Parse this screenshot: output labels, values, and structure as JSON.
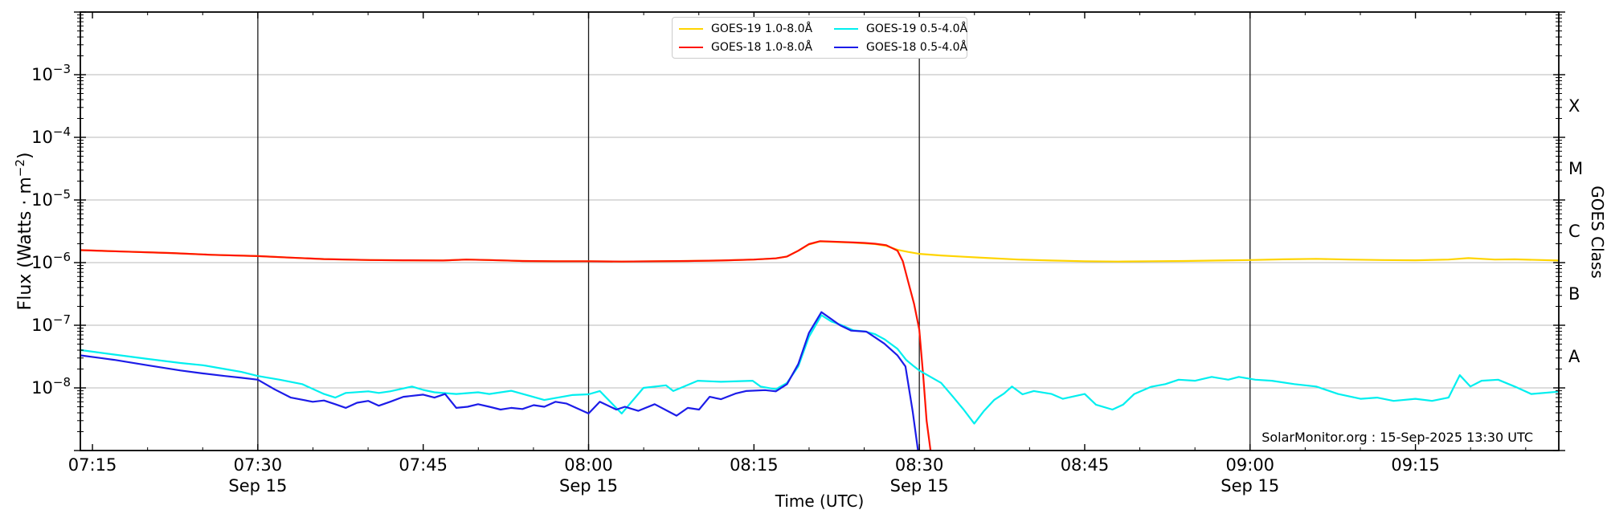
{
  "annotation": {
    "text": "SolarMonitor.org : 15-Sep-2025 13:30 UTC"
  },
  "axes": {
    "xlabel": "Time (UTC)",
    "ylabel_pre": "Flux (Watts · m",
    "ylabel_sup": "−2",
    "ylabel_post": ")",
    "ylabel_right": "GOES Class"
  },
  "legend": {
    "entries": [
      {
        "label": "GOES-19 1.0-8.0Å",
        "color": "#FFD400"
      },
      {
        "label": "GOES-19 0.5-4.0Å",
        "color": "#00EFEF"
      },
      {
        "label": "GOES-18 1.0-8.0Å",
        "color": "#FF1400"
      },
      {
        "label": "GOES-18 0.5-4.0Å",
        "color": "#1C1CE8"
      }
    ]
  },
  "chart_data": {
    "type": "line",
    "title": "",
    "xlabel": "Time (UTC)",
    "ylabel": "Flux (Watts · m⁻²)",
    "ylabel_right": "GOES Class",
    "x_axis": {
      "unit": "decimal hours UTC on 15-Sep-2025",
      "range_hours": [
        7.2317,
        9.4667
      ],
      "major_ticks": [
        {
          "t": 7.25,
          "label": "07:15"
        },
        {
          "t": 7.5,
          "label": "07:30",
          "date": "Sep 15"
        },
        {
          "t": 7.75,
          "label": "07:45"
        },
        {
          "t": 8.0,
          "label": "08:00",
          "date": "Sep 15"
        },
        {
          "t": 8.25,
          "label": "08:15"
        },
        {
          "t": 8.5,
          "label": "08:30",
          "date": "Sep 15"
        },
        {
          "t": 8.75,
          "label": "08:45"
        },
        {
          "t": 9.0,
          "label": "09:00",
          "date": "Sep 15"
        },
        {
          "t": 9.25,
          "label": "09:15"
        }
      ],
      "minor_tick_minutes": 5,
      "vlines_hours": [
        7.5,
        8.0,
        8.5,
        9.0
      ]
    },
    "y_axis": {
      "scale": "log",
      "range": [
        1e-09,
        0.01
      ],
      "labeled_decades": [
        -3,
        -4,
        -5,
        -6,
        -7,
        -8
      ],
      "grid": true
    },
    "y_axis_right": {
      "classes": [
        {
          "label": "X",
          "log_center": -3.5
        },
        {
          "label": "M",
          "log_center": -4.5
        },
        {
          "label": "C",
          "log_center": -5.5
        },
        {
          "label": "B",
          "log_center": -6.5
        },
        {
          "label": "A",
          "log_center": -7.5
        }
      ]
    },
    "legend_position": "top-center",
    "series": [
      {
        "name": "GOES-19 1.0-8.0Å",
        "satellite": "GOES-19",
        "band": "1.0-8.0Å",
        "color": "#FFD400",
        "points": [
          [
            7.233,
            1.58e-06
          ],
          [
            7.3,
            1.5e-06
          ],
          [
            7.37,
            1.42e-06
          ],
          [
            7.43,
            1.33e-06
          ],
          [
            7.5,
            1.27e-06
          ],
          [
            7.55,
            1.2e-06
          ],
          [
            7.6,
            1.14e-06
          ],
          [
            7.67,
            1.1e-06
          ],
          [
            7.72,
            1.09e-06
          ],
          [
            7.78,
            1.08e-06
          ],
          [
            7.815,
            1.12e-06
          ],
          [
            7.85,
            1.1e-06
          ],
          [
            7.9,
            1.06e-06
          ],
          [
            7.95,
            1.05e-06
          ],
          [
            8.0,
            1.05e-06
          ],
          [
            8.05,
            1.04e-06
          ],
          [
            8.1,
            1.05e-06
          ],
          [
            8.15,
            1.06e-06
          ],
          [
            8.2,
            1.08e-06
          ],
          [
            8.25,
            1.12e-06
          ],
          [
            8.283,
            1.17e-06
          ],
          [
            8.3,
            1.25e-06
          ],
          [
            8.317,
            1.55e-06
          ],
          [
            8.333,
            1.95e-06
          ],
          [
            8.35,
            2.18e-06
          ],
          [
            8.367,
            2.15e-06
          ],
          [
            8.4,
            2.08e-06
          ],
          [
            8.433,
            1.98e-06
          ],
          [
            8.45,
            1.85e-06
          ],
          [
            8.467,
            1.6e-06
          ],
          [
            8.483,
            1.48e-06
          ],
          [
            8.5,
            1.38e-06
          ],
          [
            8.533,
            1.3e-06
          ],
          [
            8.567,
            1.24e-06
          ],
          [
            8.6,
            1.19e-06
          ],
          [
            8.65,
            1.12e-06
          ],
          [
            8.7,
            1.08e-06
          ],
          [
            8.75,
            1.05e-06
          ],
          [
            8.8,
            1.04e-06
          ],
          [
            8.85,
            1.05e-06
          ],
          [
            8.9,
            1.06e-06
          ],
          [
            8.95,
            1.08e-06
          ],
          [
            9.0,
            1.1e-06
          ],
          [
            9.05,
            1.13e-06
          ],
          [
            9.1,
            1.15e-06
          ],
          [
            9.15,
            1.12e-06
          ],
          [
            9.2,
            1.1e-06
          ],
          [
            9.25,
            1.09e-06
          ],
          [
            9.3,
            1.12e-06
          ],
          [
            9.33,
            1.18e-06
          ],
          [
            9.37,
            1.12e-06
          ],
          [
            9.4,
            1.13e-06
          ],
          [
            9.4667,
            1.08e-06
          ]
        ]
      },
      {
        "name": "GOES-18 1.0-8.0Å",
        "satellite": "GOES-18",
        "band": "1.0-8.0Å",
        "color": "#FF1400",
        "points": [
          [
            7.233,
            1.58e-06
          ],
          [
            7.3,
            1.5e-06
          ],
          [
            7.37,
            1.42e-06
          ],
          [
            7.43,
            1.33e-06
          ],
          [
            7.5,
            1.27e-06
          ],
          [
            7.55,
            1.2e-06
          ],
          [
            7.6,
            1.14e-06
          ],
          [
            7.67,
            1.1e-06
          ],
          [
            7.72,
            1.09e-06
          ],
          [
            7.78,
            1.08e-06
          ],
          [
            7.815,
            1.12e-06
          ],
          [
            7.85,
            1.1e-06
          ],
          [
            7.9,
            1.06e-06
          ],
          [
            7.95,
            1.05e-06
          ],
          [
            8.0,
            1.05e-06
          ],
          [
            8.05,
            1.04e-06
          ],
          [
            8.1,
            1.05e-06
          ],
          [
            8.15,
            1.06e-06
          ],
          [
            8.2,
            1.08e-06
          ],
          [
            8.25,
            1.12e-06
          ],
          [
            8.283,
            1.17e-06
          ],
          [
            8.3,
            1.25e-06
          ],
          [
            8.317,
            1.55e-06
          ],
          [
            8.333,
            1.97e-06
          ],
          [
            8.35,
            2.2e-06
          ],
          [
            8.367,
            2.17e-06
          ],
          [
            8.4,
            2.1e-06
          ],
          [
            8.417,
            2.06e-06
          ],
          [
            8.433,
            2e-06
          ],
          [
            8.45,
            1.9e-06
          ],
          [
            8.467,
            1.55e-06
          ],
          [
            8.475,
            1.05e-06
          ],
          [
            8.483,
            5e-07
          ],
          [
            8.492,
            2.2e-07
          ],
          [
            8.5,
            8.5e-08
          ],
          [
            8.506,
            1.5e-08
          ],
          [
            8.511,
            3e-09
          ],
          [
            8.517,
            1e-09
          ]
        ]
      },
      {
        "name": "GOES-19 0.5-4.0Å",
        "satellite": "GOES-19",
        "band": "0.5-4.0Å",
        "color": "#00EFEF",
        "points": [
          [
            7.233,
            4e-08
          ],
          [
            7.283,
            3.4e-08
          ],
          [
            7.333,
            2.9e-08
          ],
          [
            7.383,
            2.5e-08
          ],
          [
            7.417,
            2.3e-08
          ],
          [
            7.45,
            2e-08
          ],
          [
            7.475,
            1.8e-08
          ],
          [
            7.5,
            1.55e-08
          ],
          [
            7.533,
            1.35e-08
          ],
          [
            7.567,
            1.15e-08
          ],
          [
            7.6,
            8e-09
          ],
          [
            7.617,
            7e-09
          ],
          [
            7.633,
            8.3e-09
          ],
          [
            7.667,
            8.8e-09
          ],
          [
            7.683,
            8.3e-09
          ],
          [
            7.7,
            8.8e-09
          ],
          [
            7.733,
            1.05e-08
          ],
          [
            7.75,
            9.3e-09
          ],
          [
            7.767,
            8.5e-09
          ],
          [
            7.8,
            8e-09
          ],
          [
            7.833,
            8.5e-09
          ],
          [
            7.85,
            8e-09
          ],
          [
            7.883,
            9e-09
          ],
          [
            7.912,
            7.4e-09
          ],
          [
            7.933,
            6.4e-09
          ],
          [
            7.975,
            7.7e-09
          ],
          [
            8.0,
            7.9e-09
          ],
          [
            8.017,
            8.9e-09
          ],
          [
            8.05,
            3.9e-09
          ],
          [
            8.083,
            1e-08
          ],
          [
            8.117,
            1.1e-08
          ],
          [
            8.128,
            8.9e-09
          ],
          [
            8.165,
            1.3e-08
          ],
          [
            8.2,
            1.25e-08
          ],
          [
            8.248,
            1.3e-08
          ],
          [
            8.26,
            1.05e-08
          ],
          [
            8.283,
            9.5e-09
          ],
          [
            8.3,
            1.2e-08
          ],
          [
            8.317,
            2.2e-08
          ],
          [
            8.333,
            6.5e-08
          ],
          [
            8.352,
            1.45e-07
          ],
          [
            8.367,
            1.15e-07
          ],
          [
            8.383,
            1e-07
          ],
          [
            8.4,
            8.3e-08
          ],
          [
            8.417,
            8e-08
          ],
          [
            8.433,
            7.2e-08
          ],
          [
            8.447,
            6e-08
          ],
          [
            8.467,
            4.2e-08
          ],
          [
            8.48,
            2.8e-08
          ],
          [
            8.492,
            2.2e-08
          ],
          [
            8.5,
            1.9e-08
          ],
          [
            8.517,
            1.5e-08
          ],
          [
            8.533,
            1.2e-08
          ],
          [
            8.55,
            7.4e-09
          ],
          [
            8.567,
            4.5e-09
          ],
          [
            8.583,
            2.7e-09
          ],
          [
            8.597,
            4.2e-09
          ],
          [
            8.613,
            6.4e-09
          ],
          [
            8.628,
            8.1e-09
          ],
          [
            8.64,
            1.05e-08
          ],
          [
            8.656,
            7.9e-09
          ],
          [
            8.673,
            8.9e-09
          ],
          [
            8.7,
            8e-09
          ],
          [
            8.717,
            6.7e-09
          ],
          [
            8.75,
            8e-09
          ],
          [
            8.767,
            5.4e-09
          ],
          [
            8.792,
            4.5e-09
          ],
          [
            8.808,
            5.4e-09
          ],
          [
            8.825,
            8e-09
          ],
          [
            8.85,
            1.04e-08
          ],
          [
            8.872,
            1.15e-08
          ],
          [
            8.892,
            1.35e-08
          ],
          [
            8.917,
            1.3e-08
          ],
          [
            8.942,
            1.5e-08
          ],
          [
            8.967,
            1.35e-08
          ],
          [
            8.983,
            1.5e-08
          ],
          [
            9.008,
            1.35e-08
          ],
          [
            9.033,
            1.3e-08
          ],
          [
            9.067,
            1.15e-08
          ],
          [
            9.1,
            1.05e-08
          ],
          [
            9.133,
            8e-09
          ],
          [
            9.167,
            6.7e-09
          ],
          [
            9.192,
            7e-09
          ],
          [
            9.217,
            6.2e-09
          ],
          [
            9.25,
            6.7e-09
          ],
          [
            9.275,
            6.2e-09
          ],
          [
            9.3,
            7e-09
          ],
          [
            9.317,
            1.6e-08
          ],
          [
            9.333,
            1.05e-08
          ],
          [
            9.35,
            1.3e-08
          ],
          [
            9.375,
            1.35e-08
          ],
          [
            9.4,
            1.05e-08
          ],
          [
            9.425,
            8e-09
          ],
          [
            9.4667,
            8.7e-09
          ]
        ]
      },
      {
        "name": "GOES-18 0.5-4.0Å",
        "satellite": "GOES-18",
        "band": "0.5-4.0Å",
        "color": "#1C1CE8",
        "points": [
          [
            7.233,
            3.3e-08
          ],
          [
            7.283,
            2.8e-08
          ],
          [
            7.333,
            2.3e-08
          ],
          [
            7.383,
            1.9e-08
          ],
          [
            7.417,
            1.7e-08
          ],
          [
            7.45,
            1.55e-08
          ],
          [
            7.475,
            1.45e-08
          ],
          [
            7.5,
            1.35e-08
          ],
          [
            7.525,
            9.5e-09
          ],
          [
            7.55,
            7e-09
          ],
          [
            7.583,
            6e-09
          ],
          [
            7.6,
            6.3e-09
          ],
          [
            7.617,
            5.5e-09
          ],
          [
            7.633,
            4.8e-09
          ],
          [
            7.65,
            5.8e-09
          ],
          [
            7.667,
            6.2e-09
          ],
          [
            7.683,
            5.2e-09
          ],
          [
            7.7,
            6e-09
          ],
          [
            7.72,
            7.2e-09
          ],
          [
            7.75,
            7.8e-09
          ],
          [
            7.767,
            7e-09
          ],
          [
            7.783,
            8e-09
          ],
          [
            7.8,
            4.8e-09
          ],
          [
            7.817,
            5e-09
          ],
          [
            7.833,
            5.5e-09
          ],
          [
            7.85,
            5e-09
          ],
          [
            7.867,
            4.5e-09
          ],
          [
            7.883,
            4.8e-09
          ],
          [
            7.9,
            4.6e-09
          ],
          [
            7.917,
            5.3e-09
          ],
          [
            7.933,
            5e-09
          ],
          [
            7.95,
            6e-09
          ],
          [
            7.967,
            5.6e-09
          ],
          [
            8.0,
            3.9e-09
          ],
          [
            8.017,
            6e-09
          ],
          [
            8.042,
            4.5e-09
          ],
          [
            8.055,
            5e-09
          ],
          [
            8.075,
            4.3e-09
          ],
          [
            8.1,
            5.5e-09
          ],
          [
            8.133,
            3.6e-09
          ],
          [
            8.15,
            4.8e-09
          ],
          [
            8.167,
            4.5e-09
          ],
          [
            8.183,
            7.2e-09
          ],
          [
            8.2,
            6.6e-09
          ],
          [
            8.222,
            8.1e-09
          ],
          [
            8.238,
            8.9e-09
          ],
          [
            8.267,
            9.2e-09
          ],
          [
            8.283,
            8.8e-09
          ],
          [
            8.3,
            1.15e-08
          ],
          [
            8.317,
            2.4e-08
          ],
          [
            8.333,
            7.5e-08
          ],
          [
            8.352,
            1.62e-07
          ],
          [
            8.367,
            1.25e-07
          ],
          [
            8.38,
            1e-07
          ],
          [
            8.397,
            8.2e-08
          ],
          [
            8.42,
            7.9e-08
          ],
          [
            8.433,
            6.4e-08
          ],
          [
            8.447,
            5.1e-08
          ],
          [
            8.467,
            3.3e-08
          ],
          [
            8.479,
            2.2e-08
          ],
          [
            8.49,
            4.2e-09
          ],
          [
            8.498,
            1e-09
          ]
        ]
      }
    ],
    "annotation": "SolarMonitor.org : 15-Sep-2025 13:30 UTC"
  }
}
